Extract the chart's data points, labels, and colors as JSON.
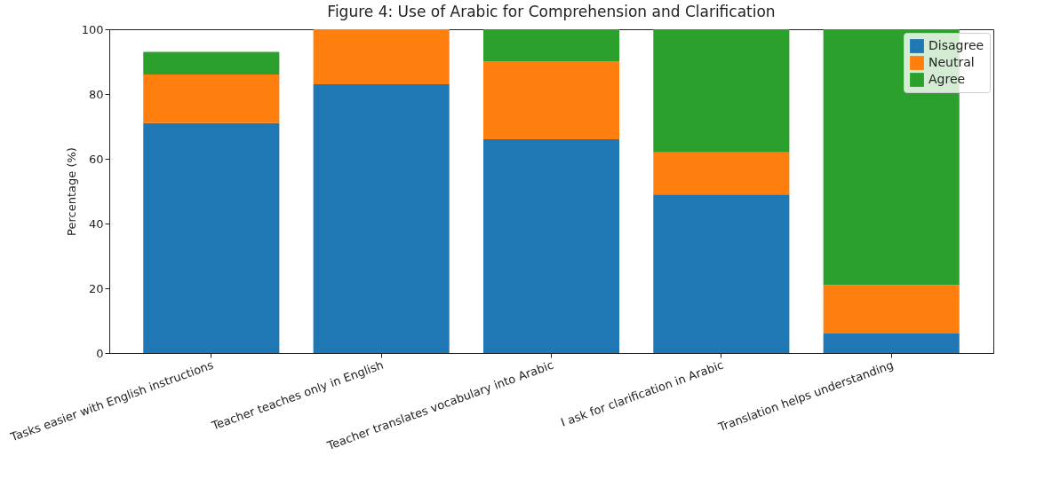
{
  "chart_data": {
    "type": "bar",
    "stacked": true,
    "title": "Figure 4: Use of Arabic for Comprehension and Clarification",
    "ylabel": "Percentage (%)",
    "categories": [
      "Tasks easier with English instructions",
      "Teacher teaches only in English",
      "Teacher translates vocabulary into Arabic",
      "I ask for clarification in Arabic",
      "Translation helps understanding"
    ],
    "series": [
      {
        "name": "Disagree",
        "color": "#1f77b4",
        "values": [
          71,
          83,
          66,
          49,
          6
        ]
      },
      {
        "name": "Neutral",
        "color": "#ff7f0e",
        "values": [
          15,
          17,
          24,
          13,
          15
        ]
      },
      {
        "name": "Agree",
        "color": "#2ca02c",
        "values": [
          7,
          null,
          10,
          38,
          79
        ]
      }
    ],
    "ylim": [
      0,
      100
    ],
    "yticks": [
      0,
      20,
      40,
      60,
      80,
      100
    ],
    "grid": false,
    "legend": "top right"
  }
}
